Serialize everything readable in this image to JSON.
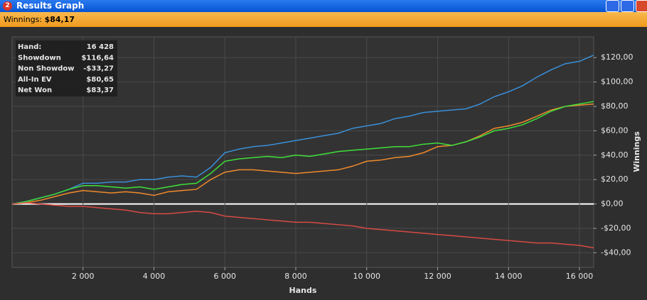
{
  "window": {
    "badge": "2",
    "title": "Results Graph"
  },
  "status": {
    "label": "Winnings:",
    "value": "$84,17"
  },
  "info_box": {
    "rows": [
      [
        "Hand:",
        "16 428"
      ],
      [
        "Showdown",
        "$116,64"
      ],
      [
        "Non Showdow",
        "-$33,27"
      ],
      [
        "All-In EV",
        "$80,65"
      ],
      [
        "Net Won",
        "$83,37"
      ]
    ]
  },
  "chart_data": {
    "type": "line",
    "x_label": "Hands",
    "y_label": "Winnings",
    "x": [
      0,
      400,
      800,
      1200,
      1600,
      2000,
      2400,
      2800,
      3200,
      3600,
      4000,
      4400,
      4800,
      5200,
      5600,
      6000,
      6400,
      6800,
      7200,
      7600,
      8000,
      8400,
      8800,
      9200,
      9600,
      10000,
      10400,
      10800,
      11200,
      11600,
      12000,
      12400,
      12800,
      13200,
      13600,
      14000,
      14400,
      14800,
      15200,
      15600,
      16000,
      16400
    ],
    "series": [
      {
        "color": "#3a8fd8",
        "values": [
          0,
          2,
          5,
          8,
          12,
          17,
          17,
          18,
          18,
          20,
          20,
          22,
          23,
          22,
          30,
          42,
          45,
          47,
          48,
          50,
          52,
          54,
          56,
          58,
          62,
          64,
          66,
          70,
          72,
          75,
          76,
          77,
          78,
          82,
          88,
          92,
          97,
          104,
          110,
          115,
          117,
          122
        ]
      },
      {
        "color": "#f08a2c",
        "values": [
          0,
          1,
          3,
          6,
          9,
          11,
          10,
          9,
          10,
          9,
          7,
          10,
          11,
          12,
          20,
          26,
          28,
          28,
          27,
          26,
          25,
          26,
          27,
          28,
          31,
          35,
          36,
          38,
          39,
          42,
          47,
          48,
          51,
          56,
          62,
          64,
          67,
          72,
          77,
          80,
          81,
          82
        ]
      },
      {
        "color": "#3ee03a",
        "values": [
          0,
          2,
          5,
          8,
          12,
          15,
          15,
          14,
          13,
          14,
          12,
          14,
          16,
          17,
          25,
          35,
          37,
          38,
          39,
          38,
          40,
          39,
          41,
          43,
          44,
          45,
          46,
          47,
          47,
          49,
          50,
          48,
          51,
          55,
          60,
          62,
          65,
          70,
          76,
          80,
          82,
          84
        ]
      },
      {
        "color": "#d84a44",
        "values": [
          0,
          1,
          0,
          -1,
          -2,
          -2,
          -3,
          -4,
          -5,
          -7,
          -8,
          -8,
          -7,
          -6,
          -7,
          -10,
          -11,
          -12,
          -13,
          -14,
          -15,
          -15,
          -16,
          -17,
          -18,
          -20,
          -21,
          -22,
          -23,
          -24,
          -25,
          -26,
          -27,
          -28,
          -29,
          -30,
          -31,
          -32,
          -32,
          -33,
          -34,
          -36
        ]
      }
    ],
    "xlim": [
      0,
      16400
    ],
    "ylim": [
      -52,
      137
    ],
    "xticks": [
      {
        "value": 2000,
        "label": "2 000"
      },
      {
        "value": 4000,
        "label": "4 000"
      },
      {
        "value": 6000,
        "label": "6 000"
      },
      {
        "value": 8000,
        "label": "8 000"
      },
      {
        "value": 10000,
        "label": "10 000"
      },
      {
        "value": 12000,
        "label": "12 000"
      },
      {
        "value": 14000,
        "label": "14 000"
      },
      {
        "value": 16000,
        "label": "16 000"
      }
    ],
    "yticks": [
      {
        "value": -40,
        "label": "-$40,00"
      },
      {
        "value": -20,
        "label": "-$20,00"
      },
      {
        "value": 0,
        "label": "$0,00"
      },
      {
        "value": 20,
        "label": "$20,00"
      },
      {
        "value": 40,
        "label": "$40,00"
      },
      {
        "value": 60,
        "label": "$60,00"
      },
      {
        "value": 80,
        "label": "$80,00"
      },
      {
        "value": 100,
        "label": "$100,00"
      },
      {
        "value": 120,
        "label": "$120,00"
      }
    ],
    "grid": true
  }
}
